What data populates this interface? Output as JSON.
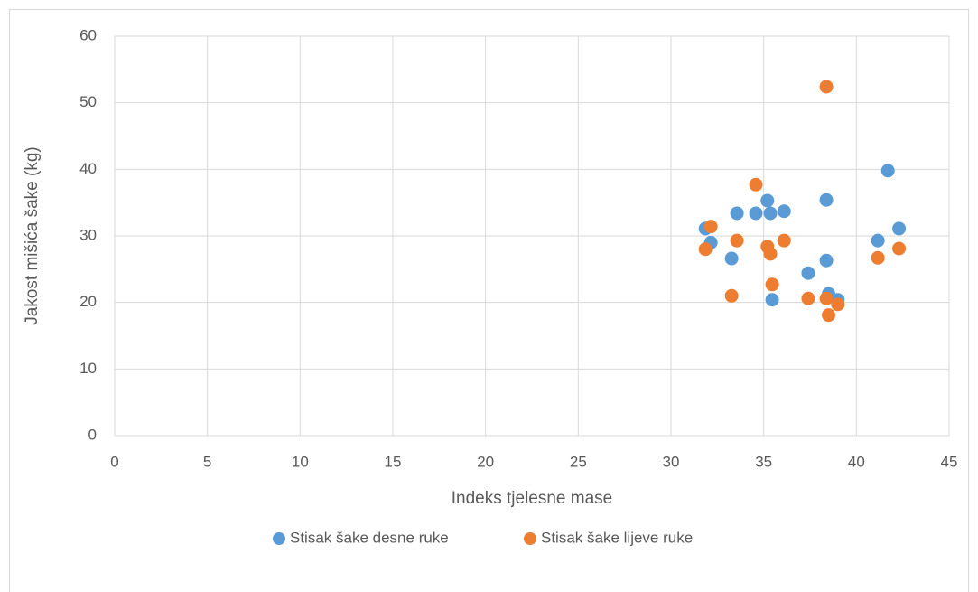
{
  "chart_data": {
    "type": "scatter",
    "xlabel": "Indeks tjelesne mase",
    "ylabel": "Jakost mišića šake (kg)",
    "xlim": [
      0,
      45
    ],
    "xticks": [
      0,
      5,
      10,
      15,
      20,
      25,
      30,
      35,
      40,
      45
    ],
    "ylim": [
      0,
      60
    ],
    "yticks": [
      0,
      10,
      20,
      30,
      40,
      50,
      60
    ],
    "grid": true,
    "legend": "bottom",
    "series": [
      {
        "name": "Stisak šake desne ruke",
        "color": "#5b9bd5",
        "x": [
          31.86,
          32.15,
          33.27,
          33.56,
          34.58,
          35.2,
          35.36,
          35.46,
          36.1,
          37.4,
          38.38,
          38.38,
          38.5,
          39.0,
          41.16,
          41.7,
          42.3
        ],
        "values": [
          31.1,
          29.0,
          26.6,
          33.4,
          33.4,
          35.3,
          33.4,
          20.4,
          33.7,
          24.4,
          35.4,
          26.3,
          21.3,
          20.4,
          29.3,
          39.8,
          31.1
        ]
      },
      {
        "name": "Stisak šake lijeve ruke",
        "color": "#ed7d31",
        "x": [
          31.86,
          32.15,
          33.27,
          33.56,
          34.58,
          35.2,
          35.36,
          35.46,
          36.1,
          37.4,
          38.38,
          38.38,
          38.5,
          39.0,
          41.16,
          42.3
        ],
        "values": [
          28.0,
          31.4,
          21.0,
          29.3,
          37.7,
          28.4,
          27.3,
          22.7,
          29.3,
          20.6,
          52.4,
          20.6,
          18.1,
          19.7,
          26.7,
          28.1
        ]
      }
    ]
  }
}
